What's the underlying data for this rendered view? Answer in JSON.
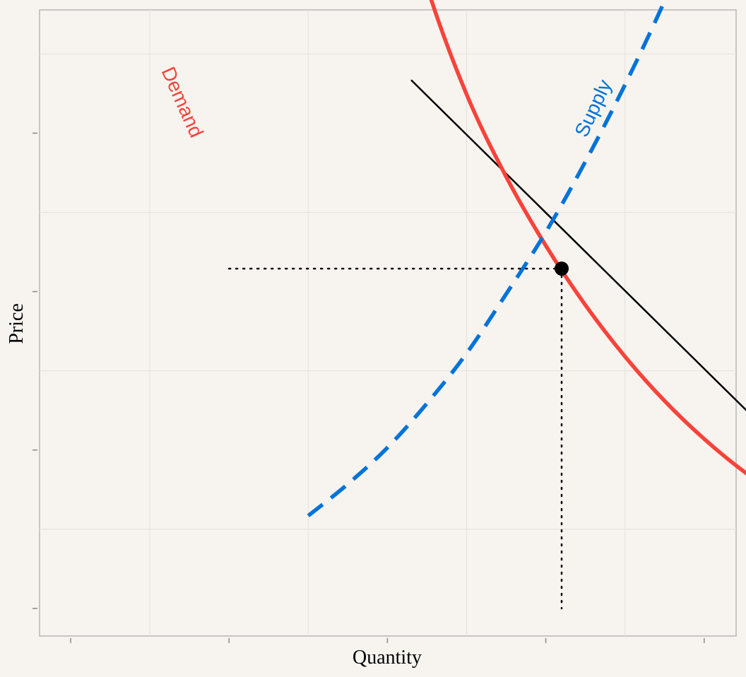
{
  "chart_data": {
    "type": "line",
    "title": "",
    "xlabel": "Quantity",
    "ylabel": "Price",
    "xlim": [
      0,
      10
    ],
    "ylim": [
      0,
      10
    ],
    "grid": true,
    "tick_labels": false,
    "series": [
      {
        "name": "Demand",
        "color": "#f8433a",
        "style": "solid",
        "x": [
          4.0,
          4.5,
          5.0,
          5.5,
          6.0,
          6.5,
          7.0,
          7.5,
          8.0,
          8.5,
          9.0,
          9.5,
          10.0
        ],
        "y": [
          9.69,
          7.85,
          6.49,
          5.45,
          4.58,
          3.83,
          3.18,
          2.62,
          2.14,
          1.73,
          1.39,
          1.1,
          0.87
        ]
      },
      {
        "name": "Supply",
        "color": "#0073d9",
        "style": "dashed",
        "x": [
          3.0,
          3.5,
          4.0,
          4.5,
          5.0,
          5.5,
          6.0,
          6.5,
          7.0,
          7.5,
          8.0,
          8.5,
          9.0
        ],
        "y": [
          1.17,
          1.57,
          2.03,
          2.59,
          3.22,
          3.97,
          4.75,
          5.64,
          6.61,
          7.67,
          8.86,
          10.17,
          11.6
        ]
      }
    ],
    "tangent_line": {
      "x": [
        4.3,
        10.3
      ],
      "y": [
        6.67,
        0.76
      ],
      "color": "#000000"
    },
    "equilibrium": {
      "x": 6.2,
      "y": 4.29,
      "color": "#000000"
    },
    "guide_lines": {
      "style": "dotted",
      "x_from": 2.0,
      "y_from": -0.64
    },
    "x_ticks": [
      2,
      4,
      6,
      8,
      10,
      12
    ],
    "y_ticks": [
      0,
      2,
      4,
      6,
      8,
      10
    ]
  }
}
